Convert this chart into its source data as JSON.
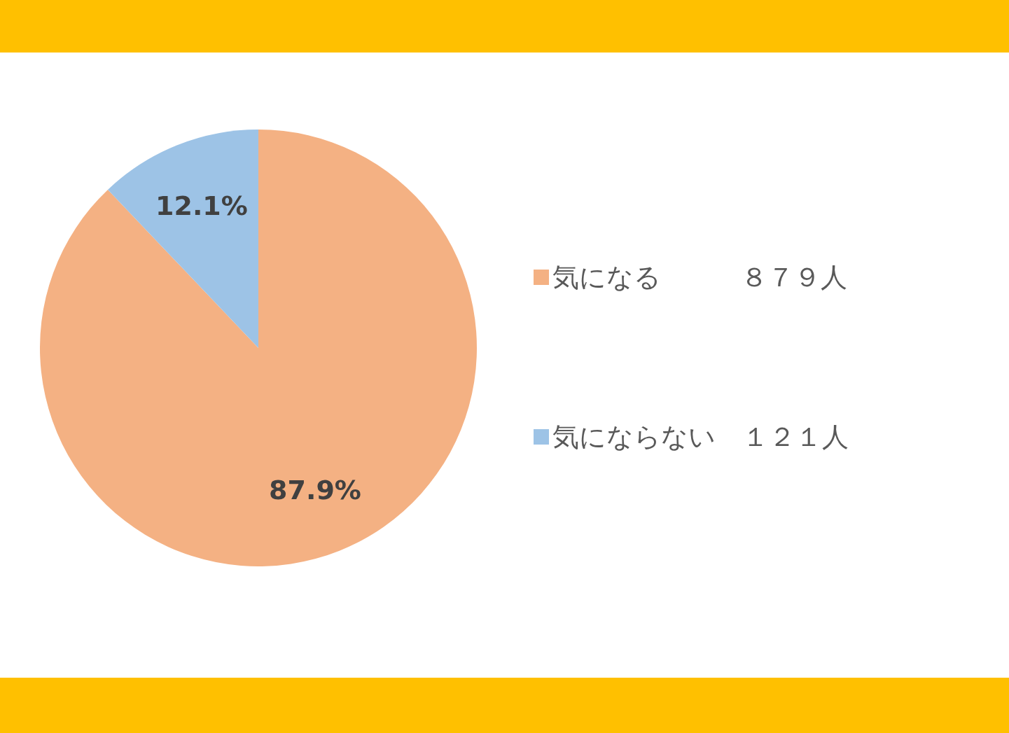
{
  "chart_data": {
    "type": "pie",
    "categories": [
      "気になる　　　８７９人",
      "気にならない　１２１人"
    ],
    "values": [
      87.9,
      12.1
    ],
    "value_labels": [
      "87.9%",
      "12.1%"
    ],
    "colors": [
      "#f4b183",
      "#9dc3e6"
    ],
    "legend": "right"
  }
}
